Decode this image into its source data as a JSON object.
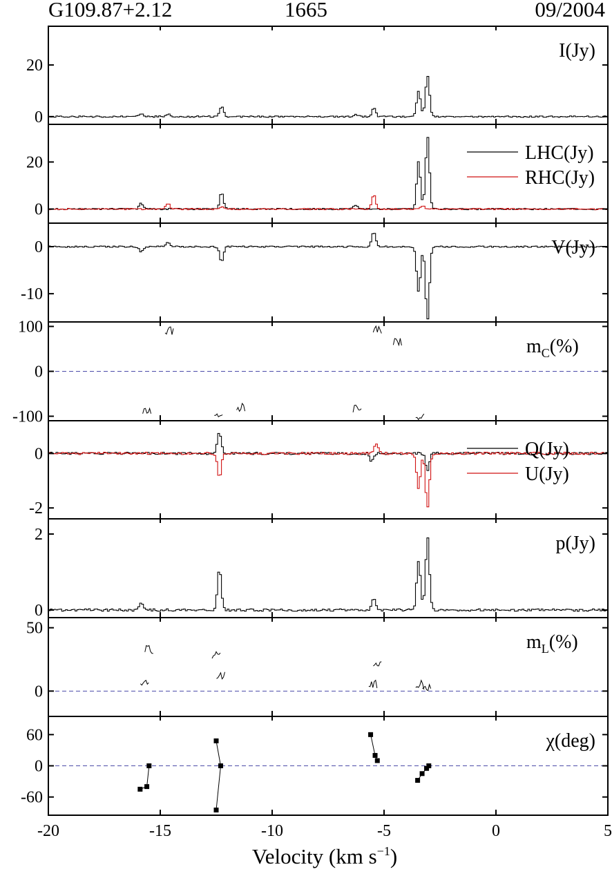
{
  "header": {
    "source": "G109.87+2.12",
    "frequency": "1665",
    "date": "09/2004"
  },
  "xaxis": {
    "label_main": "Velocity (km s",
    "label_sup": "−1",
    "label_end": ")",
    "range": [
      -20,
      5
    ],
    "ticks": [
      -20,
      -15,
      -10,
      -5,
      0,
      5
    ],
    "tick_labels": [
      "-20",
      "-15",
      "-10",
      "-5",
      "0",
      "5"
    ]
  },
  "colors": {
    "line": "#000000",
    "red": "#d01010",
    "dashed": "#4a4aa8"
  },
  "chart_data": [
    {
      "type": "line",
      "label": "I(Jy)",
      "ylim": [
        -3,
        35
      ],
      "yticks": [
        0,
        20
      ],
      "ytick_labels": [
        "0",
        "20"
      ],
      "series": [
        {
          "color": "black",
          "values": [
            [
              -15.9,
              1.2
            ],
            [
              -14.7,
              1
            ],
            [
              -12.3,
              4
            ],
            [
              -6.3,
              0.8
            ],
            [
              -5.5,
              3.2
            ],
            [
              -3.5,
              10
            ],
            [
              -3.1,
              16
            ]
          ]
        }
      ]
    },
    {
      "type": "line",
      "label": "LHC/RHC",
      "ylim": [
        -6,
        36
      ],
      "yticks": [
        0,
        20
      ],
      "ytick_labels": [
        "0",
        "20"
      ],
      "legend": [
        "LHC(Jy)",
        "RHC(Jy)"
      ],
      "series": [
        {
          "name": "LHC(Jy)",
          "color": "black",
          "values": [
            [
              -15.9,
              2.5
            ],
            [
              -12.3,
              7
            ],
            [
              -6.3,
              1.8
            ],
            [
              -3.5,
              20
            ],
            [
              -3.1,
              31
            ]
          ]
        },
        {
          "name": "RHC(Jy)",
          "color": "red",
          "values": [
            [
              -14.7,
              2.2
            ],
            [
              -12.3,
              1
            ],
            [
              -5.5,
              6.5
            ],
            [
              -3.3,
              1.2
            ]
          ]
        }
      ]
    },
    {
      "type": "line",
      "label": "V(Jy)",
      "ylim": [
        -16,
        5
      ],
      "yticks": [
        0,
        -10
      ],
      "ytick_labels": [
        "0",
        "-10"
      ],
      "series": [
        {
          "color": "black",
          "values": [
            [
              -15.9,
              -1.2
            ],
            [
              -14.7,
              1.1
            ],
            [
              -12.3,
              -3.2
            ],
            [
              -5.5,
              3.2
            ],
            [
              -3.5,
              -9.5
            ],
            [
              -3.1,
              -15.5
            ]
          ]
        }
      ]
    },
    {
      "type": "line",
      "label_main": "m",
      "label_sub": "C",
      "label_end": "(%)",
      "ylim": [
        -110,
        110
      ],
      "yticks": [
        100,
        0,
        -100
      ],
      "ytick_labels": [
        "100",
        "0",
        "-100"
      ],
      "dashed_zero": true,
      "series": [
        {
          "color": "black",
          "values": [
            [
              -14.6,
              92
            ],
            [
              -5.3,
              93
            ],
            [
              -4.4,
              65
            ],
            [
              -15.6,
              -88
            ],
            [
              -12.4,
              -92
            ],
            [
              -11.4,
              -80
            ],
            [
              -6.2,
              -85
            ],
            [
              -3.4,
              -97
            ]
          ]
        }
      ]
    },
    {
      "type": "line",
      "label": "Q/U",
      "ylim": [
        -2.4,
        1.2
      ],
      "yticks": [
        0,
        -2
      ],
      "ytick_labels": [
        "0",
        "-2"
      ],
      "legend": [
        "Q(Jy)",
        "U(Jy)"
      ],
      "series": [
        {
          "name": "Q(Jy)",
          "color": "black",
          "values": [
            [
              -12.4,
              0.8
            ],
            [
              -5.6,
              -0.3
            ],
            [
              -3.1,
              -0.6
            ]
          ]
        },
        {
          "name": "U(Jy)",
          "color": "red",
          "values": [
            [
              -12.4,
              -0.9
            ],
            [
              -5.4,
              0.4
            ],
            [
              -3.5,
              -1.3
            ],
            [
              -3.1,
              -2
            ]
          ]
        }
      ]
    },
    {
      "type": "line",
      "label": "p(Jy)",
      "ylim": [
        -0.2,
        2.4
      ],
      "yticks": [
        2,
        0
      ],
      "ytick_labels": [
        "2",
        "0"
      ],
      "series": [
        {
          "color": "black",
          "values": [
            [
              -15.9,
              0.2
            ],
            [
              -12.4,
              1.1
            ],
            [
              -5.5,
              0.3
            ],
            [
              -3.5,
              1.3
            ],
            [
              -3.1,
              1.9
            ]
          ]
        }
      ]
    },
    {
      "type": "line",
      "label_main": "m",
      "label_sub": "L",
      "label_end": "(%)",
      "ylim": [
        -20,
        58
      ],
      "yticks": [
        50,
        0
      ],
      "ytick_labels": [
        "50",
        "0"
      ],
      "dashed_zero": true,
      "series": [
        {
          "color": "black",
          "values": [
            [
              -15.7,
              8
            ],
            [
              -15.5,
              33
            ],
            [
              -12.5,
              28
            ],
            [
              -12.3,
              12
            ],
            [
              -5.5,
              6
            ],
            [
              -5.3,
              22
            ],
            [
              -3.4,
              5
            ],
            [
              -3.1,
              4
            ]
          ]
        }
      ]
    },
    {
      "type": "scatter",
      "label": "χ(deg)",
      "ylim": [
        -95,
        95
      ],
      "yticks": [
        60,
        0,
        -60
      ],
      "ytick_labels": [
        "60",
        "0",
        "-60"
      ],
      "dashed_zero": true,
      "series": [
        {
          "color": "black",
          "values": [
            [
              -15.9,
              -45
            ],
            [
              -15.6,
              -40
            ],
            [
              -15.5,
              0
            ],
            [
              -12.5,
              48
            ],
            [
              -12.5,
              -85
            ],
            [
              -12.3,
              0
            ],
            [
              -5.6,
              60
            ],
            [
              -5.4,
              20
            ],
            [
              -5.3,
              10
            ],
            [
              -3.5,
              -28
            ],
            [
              -3.3,
              -15
            ],
            [
              -3.1,
              -5
            ],
            [
              -3.0,
              0
            ]
          ]
        }
      ]
    }
  ]
}
